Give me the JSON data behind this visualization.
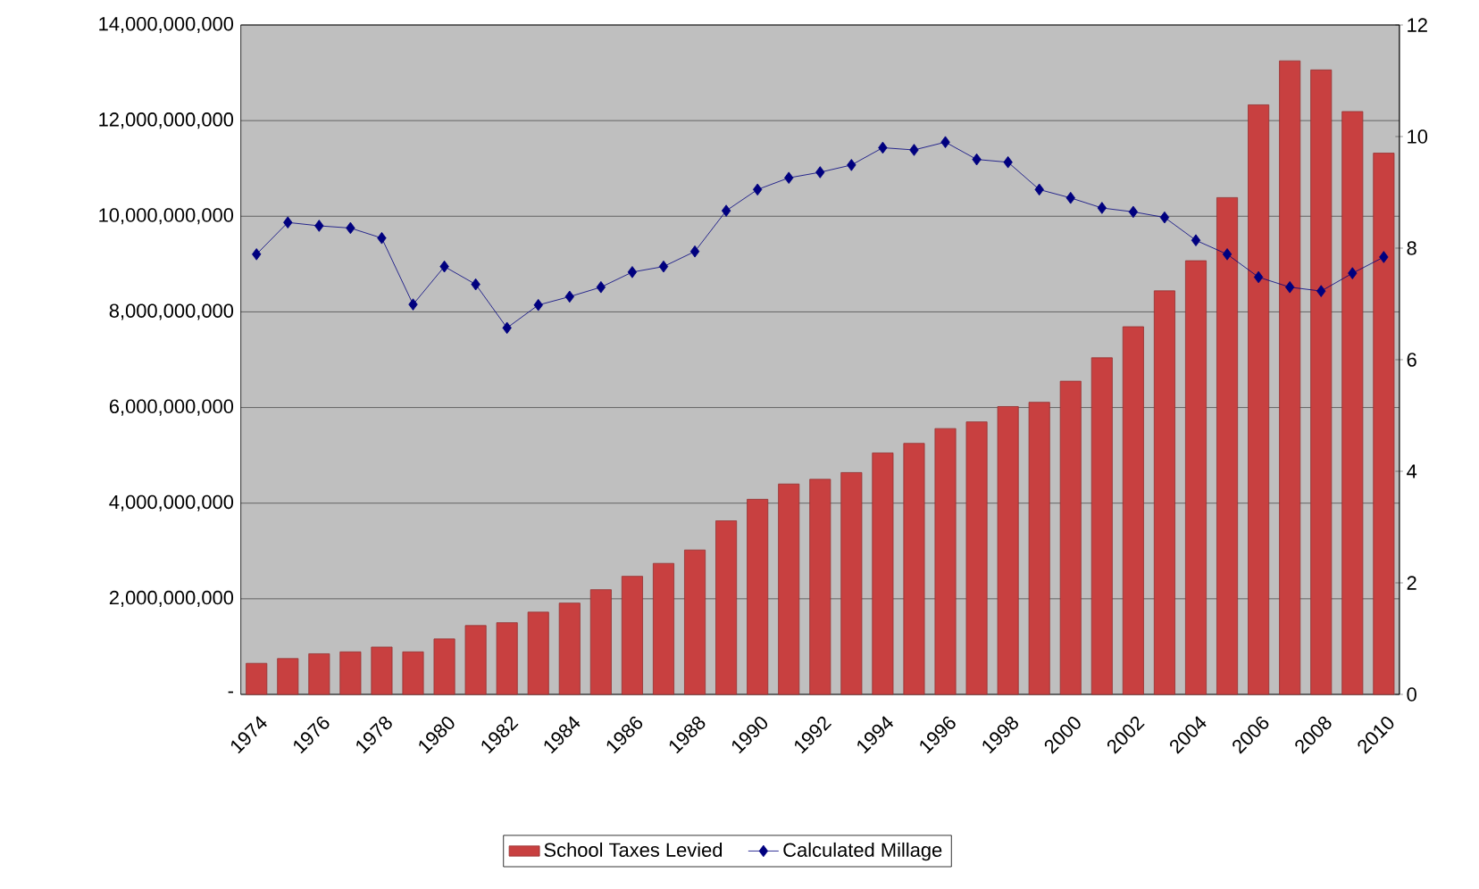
{
  "chart_data": {
    "type": "bar",
    "categories": [
      "1974",
      null,
      "1976",
      null,
      "1978",
      null,
      "1980",
      null,
      "1982",
      null,
      "1984",
      null,
      "1986",
      null,
      "1988",
      null,
      "1990",
      null,
      "1992",
      null,
      "1994",
      null,
      "1996",
      null,
      "1998",
      null,
      "2000",
      null,
      "2002",
      null,
      "2004",
      null,
      "2006",
      null,
      "2008",
      null,
      "2010"
    ],
    "series": [
      {
        "name": "School Taxes Levied",
        "color": "#c84040",
        "values": [
          650000000,
          750000000,
          850000000,
          890000000,
          990000000,
          890000000,
          1160000000,
          1440000000,
          1500000000,
          1720000000,
          1910000000,
          2190000000,
          2470000000,
          2740000000,
          3020000000,
          3630000000,
          4080000000,
          4400000000,
          4500000000,
          4640000000,
          5050000000,
          5250000000,
          5560000000,
          5700000000,
          6020000000,
          6110000000,
          6550000000,
          7040000000,
          7690000000,
          8440000000,
          9070000000,
          10390000000,
          12330000000,
          13250000000,
          13060000000,
          12190000000,
          11320000000
        ]
      },
      {
        "name": "Calculated Millage",
        "type": "line",
        "axis": "y2",
        "color": "#00007f",
        "values": [
          7.89,
          8.46,
          8.4,
          8.36,
          8.18,
          6.99,
          7.67,
          7.35,
          6.57,
          6.98,
          7.13,
          7.3,
          7.57,
          7.67,
          7.94,
          8.67,
          9.05,
          9.26,
          9.36,
          9.49,
          9.8,
          9.76,
          9.9,
          9.59,
          9.54,
          9.05,
          8.9,
          8.72,
          8.65,
          8.55,
          8.14,
          7.89,
          7.48,
          7.3,
          7.23,
          7.55,
          7.84
        ]
      }
    ],
    "ylim": [
      0,
      14000000000
    ],
    "yticks": [
      {
        "value": 0,
        "label": "-"
      },
      {
        "value": 2000000000,
        "label": "2,000,000,000"
      },
      {
        "value": 4000000000,
        "label": "4,000,000,000"
      },
      {
        "value": 6000000000,
        "label": "6,000,000,000"
      },
      {
        "value": 8000000000,
        "label": "8,000,000,000"
      },
      {
        "value": 10000000000,
        "label": "10,000,000,000"
      },
      {
        "value": 12000000000,
        "label": "12,000,000,000"
      },
      {
        "value": 14000000000,
        "label": "14,000,000,000"
      }
    ],
    "y2lim": [
      0,
      12
    ],
    "y2ticks": [
      0,
      2,
      4,
      6,
      8,
      10,
      12
    ],
    "grid": "y",
    "legend": "bottom",
    "marker": "diamond"
  }
}
